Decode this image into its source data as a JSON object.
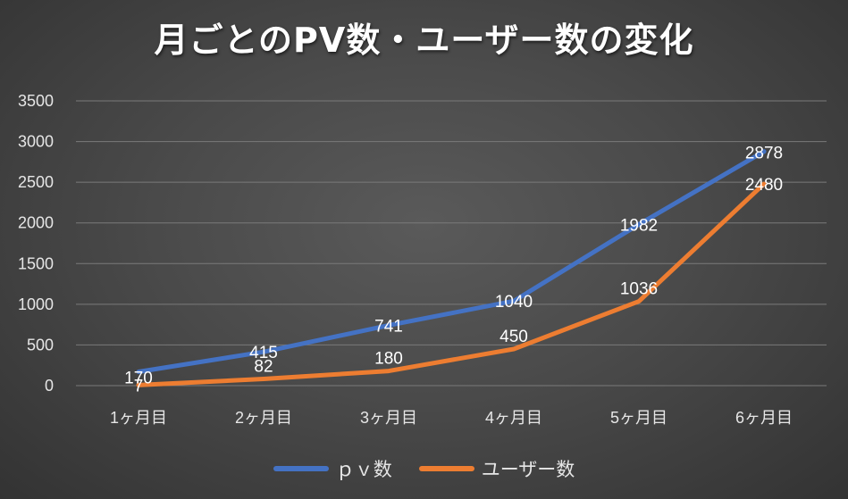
{
  "chart_data": {
    "type": "line",
    "title": "月ごとのPV数・ユーザー数の変化",
    "categories": [
      "1ヶ月目",
      "2ヶ月目",
      "3ヶ月目",
      "4ヶ月目",
      "5ヶ月目",
      "6ヶ月目"
    ],
    "series": [
      {
        "name": "ｐｖ数",
        "values": [
          170,
          415,
          741,
          1040,
          1982,
          2878
        ],
        "color": "#4472C4"
      },
      {
        "name": "ユーザー数",
        "values": [
          7,
          82,
          180,
          450,
          1036,
          2480
        ],
        "color": "#ED7D31"
      }
    ],
    "ylim": [
      0,
      3500
    ],
    "yticks": [
      0,
      500,
      1000,
      1500,
      2000,
      2500,
      3000,
      3500
    ],
    "xlabel": "",
    "ylabel": "",
    "grid": true,
    "legend_position": "bottom"
  }
}
